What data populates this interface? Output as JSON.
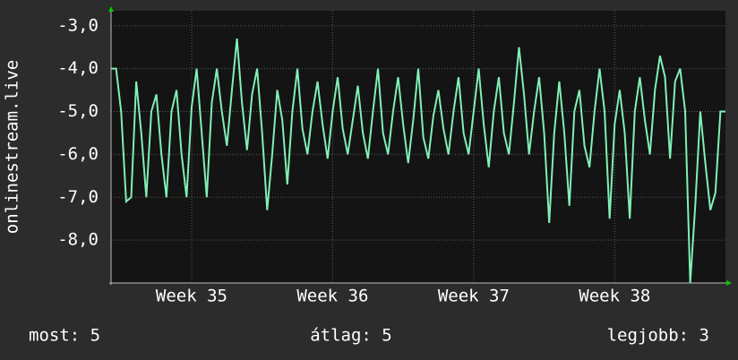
{
  "chart_data": {
    "type": "line",
    "y_label": "onlinestream.live",
    "xlim": [
      0,
      30.5
    ],
    "xticks": [
      {
        "value": 4,
        "label": "Week 35"
      },
      {
        "value": 11,
        "label": "Week 36"
      },
      {
        "value": 18,
        "label": "Week 37"
      },
      {
        "value": 25,
        "label": "Week 38"
      }
    ],
    "ylim": [
      -9,
      -2.65
    ],
    "yticks": [
      {
        "value": -3,
        "label": "-3,0"
      },
      {
        "value": -4,
        "label": "-4,0"
      },
      {
        "value": -5,
        "label": "-5,0"
      },
      {
        "value": -6,
        "label": "-6,0"
      },
      {
        "value": -7,
        "label": "-7,0"
      },
      {
        "value": -8,
        "label": "-8,0"
      }
    ],
    "grid": true,
    "x": [
      0,
      0.25,
      0.5,
      0.75,
      1,
      1.25,
      1.5,
      1.75,
      2,
      2.25,
      2.5,
      2.75,
      3,
      3.25,
      3.5,
      3.75,
      4,
      4.25,
      4.5,
      4.75,
      5,
      5.25,
      5.5,
      5.75,
      6,
      6.25,
      6.5,
      6.75,
      7,
      7.25,
      7.5,
      7.75,
      8,
      8.25,
      8.5,
      8.75,
      9,
      9.25,
      9.5,
      9.75,
      10,
      10.25,
      10.5,
      10.75,
      11,
      11.25,
      11.5,
      11.75,
      12,
      12.25,
      12.5,
      12.75,
      13,
      13.25,
      13.5,
      13.75,
      14,
      14.25,
      14.5,
      14.75,
      15,
      15.25,
      15.5,
      15.75,
      16,
      16.25,
      16.5,
      16.75,
      17,
      17.25,
      17.5,
      17.75,
      18,
      18.25,
      18.5,
      18.75,
      19,
      19.25,
      19.5,
      19.75,
      20,
      20.25,
      20.5,
      20.75,
      21,
      21.25,
      21.5,
      21.75,
      22,
      22.25,
      22.5,
      22.75,
      23,
      23.25,
      23.5,
      23.75,
      24,
      24.25,
      24.5,
      24.75,
      25,
      25.25,
      25.5,
      25.75,
      26,
      26.25,
      26.5,
      26.75,
      27,
      27.25,
      27.5,
      27.75,
      28,
      28.25,
      28.5,
      28.75,
      29,
      29.25,
      29.5,
      29.75,
      30,
      30.25,
      30.5
    ],
    "series": [
      {
        "color": "#80f0b4",
        "values": [
          -4.0,
          -4.0,
          -5.0,
          -7.1,
          -7.0,
          -4.3,
          -5.5,
          -7.0,
          -5.0,
          -4.6,
          -6.0,
          -7.0,
          -5.0,
          -4.5,
          -6.0,
          -7.0,
          -4.9,
          -4.0,
          -5.5,
          -7.0,
          -4.8,
          -4.0,
          -5.0,
          -5.8,
          -4.5,
          -3.3,
          -4.8,
          -5.9,
          -4.6,
          -4.0,
          -5.5,
          -7.3,
          -6.0,
          -4.5,
          -5.2,
          -6.7,
          -5.0,
          -4.0,
          -5.4,
          -6.0,
          -5.0,
          -4.3,
          -5.3,
          -6.1,
          -5.0,
          -4.2,
          -5.4,
          -6.0,
          -5.2,
          -4.4,
          -5.5,
          -6.1,
          -5.0,
          -4.0,
          -5.5,
          -6.0,
          -5.0,
          -4.2,
          -5.3,
          -6.2,
          -5.2,
          -4.0,
          -5.6,
          -6.1,
          -5.1,
          -4.5,
          -5.4,
          -6.0,
          -5.0,
          -4.2,
          -5.5,
          -6.0,
          -5.0,
          -4.0,
          -5.3,
          -6.3,
          -5.0,
          -4.2,
          -5.5,
          -6.0,
          -4.8,
          -3.5,
          -4.6,
          -6.0,
          -5.0,
          -4.2,
          -5.5,
          -7.6,
          -5.5,
          -4.3,
          -5.5,
          -7.2,
          -5.0,
          -4.5,
          -5.8,
          -6.3,
          -5.0,
          -4.0,
          -5.0,
          -7.5,
          -5.3,
          -4.5,
          -5.5,
          -7.5,
          -5.0,
          -4.2,
          -5.2,
          -6.0,
          -4.5,
          -3.7,
          -4.2,
          -6.1,
          -4.3,
          -4.0,
          -5.0,
          -9.0,
          -7.2,
          -5.0,
          -6.2,
          -7.3,
          -6.9,
          -5.0,
          -5.0
        ]
      }
    ],
    "footer": [
      "most: 5",
      "átlag: 5",
      "legjobb: 3"
    ]
  }
}
